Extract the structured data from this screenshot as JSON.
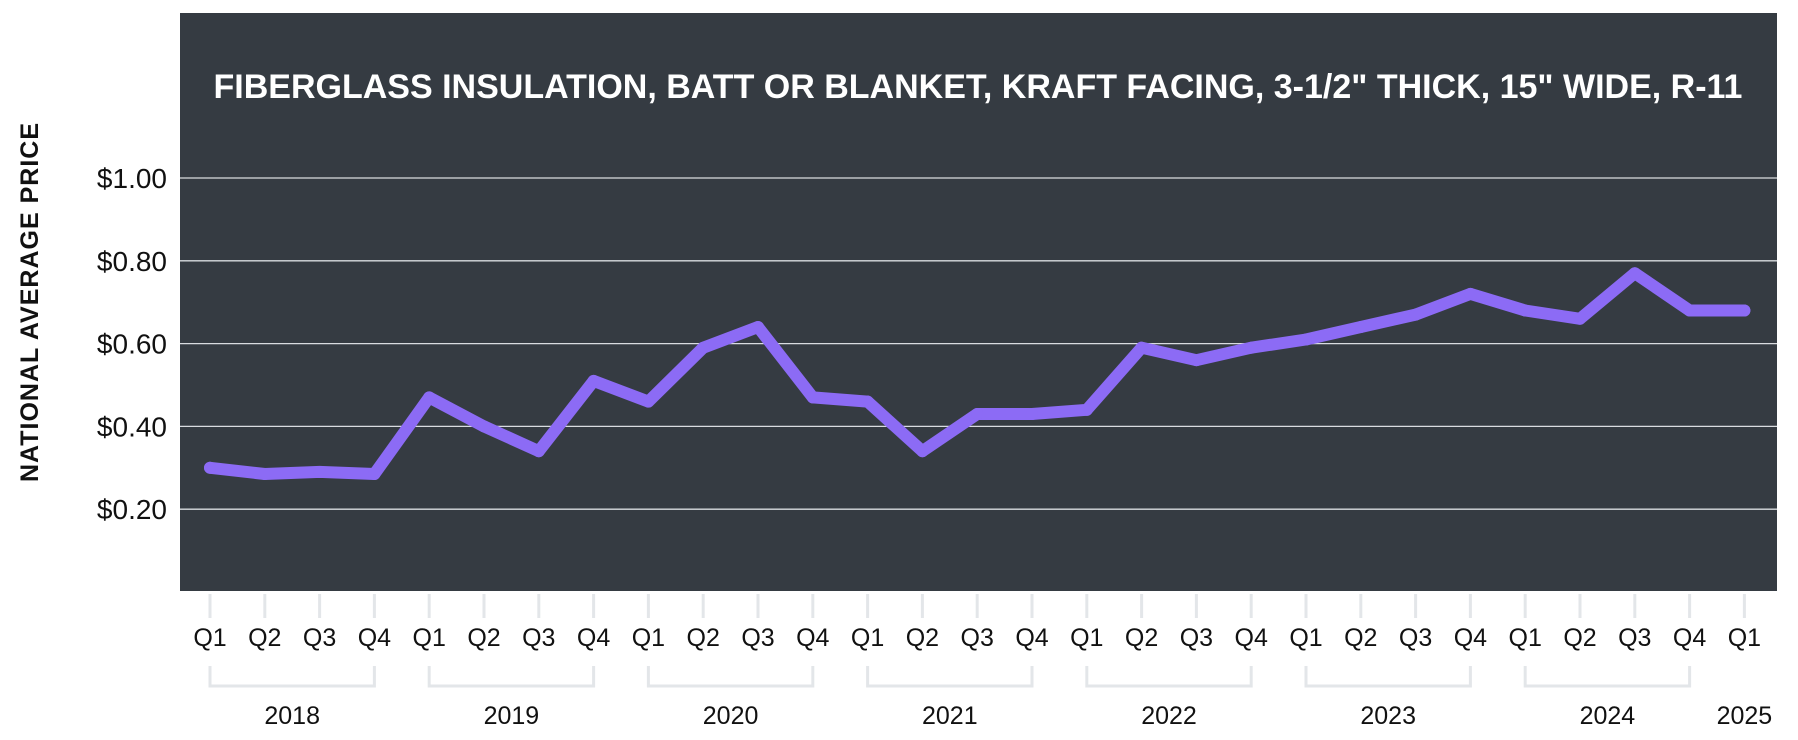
{
  "chart_data": {
    "type": "line",
    "title": "FIBERGLASS INSULATION, BATT OR BLANKET, KRAFT FACING, 3-1/2\" THICK, 15\" WIDE, R-11",
    "ylabel": "NATIONAL AVERAGE PRICE",
    "xlabel": "",
    "ylim": [
      0,
      1.0
    ],
    "y_ticks": [
      "$0.20",
      "$0.40",
      "$0.60",
      "$0.80",
      "$1.00"
    ],
    "y_tick_values": [
      0.2,
      0.4,
      0.6,
      0.8,
      1.0
    ],
    "grid": true,
    "categories": [
      "Q1",
      "Q2",
      "Q3",
      "Q4",
      "Q1",
      "Q2",
      "Q3",
      "Q4",
      "Q1",
      "Q2",
      "Q3",
      "Q4",
      "Q1",
      "Q2",
      "Q3",
      "Q4",
      "Q1",
      "Q2",
      "Q3",
      "Q4",
      "Q1",
      "Q2",
      "Q3",
      "Q4",
      "Q1",
      "Q2",
      "Q3",
      "Q4",
      "Q1"
    ],
    "year_groups": [
      {
        "label": "2018",
        "start": 0,
        "end": 3
      },
      {
        "label": "2019",
        "start": 4,
        "end": 7
      },
      {
        "label": "2020",
        "start": 8,
        "end": 11
      },
      {
        "label": "2021",
        "start": 12,
        "end": 15
      },
      {
        "label": "2022",
        "start": 16,
        "end": 19
      },
      {
        "label": "2023",
        "start": 20,
        "end": 23
      },
      {
        "label": "2024",
        "start": 24,
        "end": 27
      },
      {
        "label": "2025",
        "start": 28,
        "end": 28
      }
    ],
    "series": [
      {
        "values": [
          0.3,
          0.285,
          0.29,
          0.285,
          0.47,
          0.4,
          0.34,
          0.51,
          0.46,
          0.59,
          0.64,
          0.47,
          0.46,
          0.34,
          0.43,
          0.43,
          0.44,
          0.59,
          0.56,
          0.59,
          0.61,
          0.64,
          0.67,
          0.72,
          0.68,
          0.66,
          0.77,
          0.68,
          0.68
        ]
      }
    ],
    "colors": {
      "plot_background": "#353b42",
      "line": "#8c6bf5",
      "gridline": "#d9dce0",
      "bracket": "#e3e6e9"
    }
  }
}
